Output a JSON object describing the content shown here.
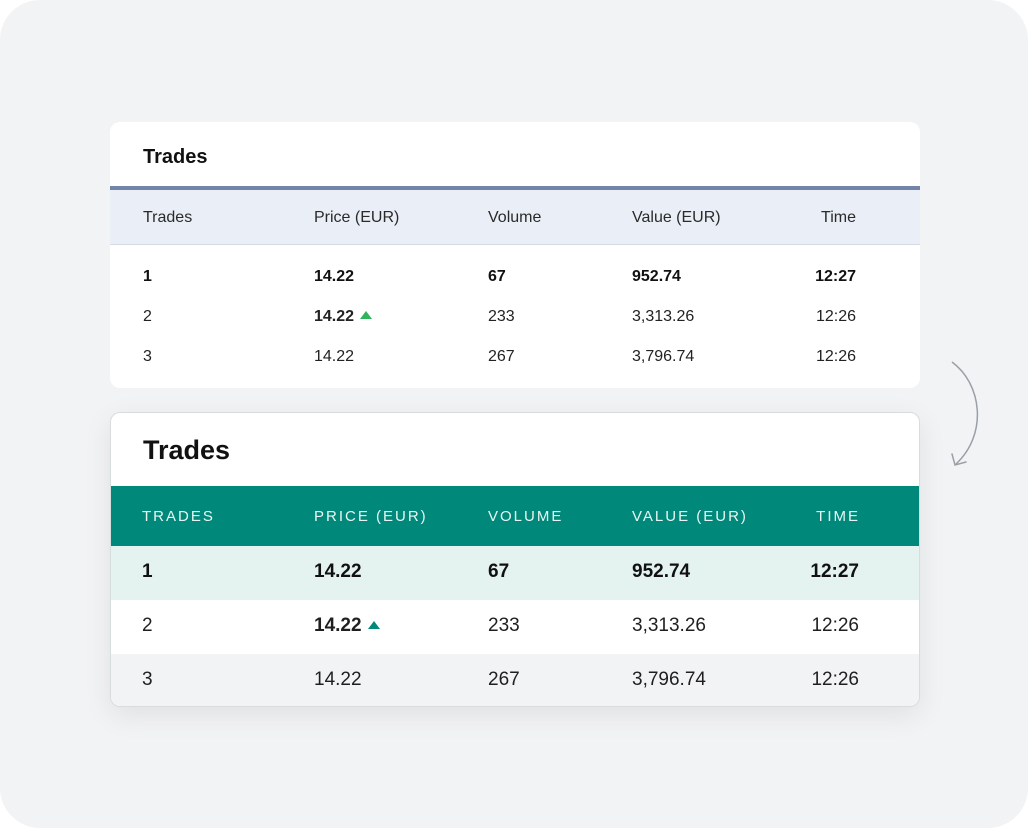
{
  "old_table": {
    "title": "Trades",
    "columns": [
      "Trades",
      "Price (EUR)",
      "Volume",
      "Value (EUR)",
      "Time"
    ],
    "rows": [
      {
        "trades": "1",
        "price": "14.22",
        "volume": "67",
        "value": "952.74",
        "time": "12:27",
        "style": "bold"
      },
      {
        "trades": "2",
        "price": "14.22",
        "volume": "233",
        "value": "3,313.26",
        "time": "12:26",
        "price_trend": "up"
      },
      {
        "trades": "3",
        "price": "14.22",
        "volume": "267",
        "value": "3,796.74",
        "time": "12:26"
      }
    ],
    "up_color": "#2fb35b"
  },
  "new_table": {
    "title": "Trades",
    "columns": [
      "TRADES",
      "PRICE (EUR)",
      "VOLUME",
      "VALUE (EUR)",
      "TIME"
    ],
    "rows": [
      {
        "trades": "1",
        "price": "14.22",
        "volume": "67",
        "value": "952.74",
        "time": "12:27",
        "style": "bold-highlight"
      },
      {
        "trades": "2",
        "price": "14.22",
        "volume": "233",
        "value": "3,313.26",
        "time": "12:26",
        "price_trend": "up"
      },
      {
        "trades": "3",
        "price": "14.22",
        "volume": "267",
        "value": "3,796.74",
        "time": "12:26",
        "style": "alternate"
      }
    ],
    "header_color": "#00897a",
    "up_color": "#00897a"
  },
  "icons": {
    "transition_arrow": "curved-arrow-down-icon",
    "trend_up": "triangle-up-icon"
  }
}
